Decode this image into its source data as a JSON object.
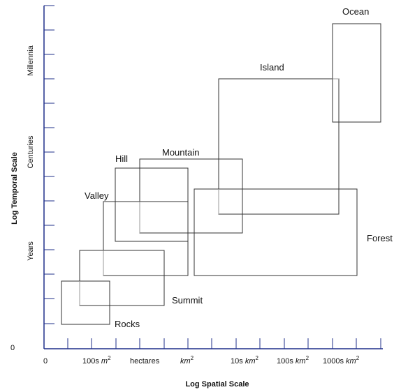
{
  "axes": {
    "x_title": "Log Spatial Scale",
    "y_title": "Log Temporal Scale",
    "x_ticks": {
      "zero": "0",
      "t1_text": "100s",
      "t1_unit": "m",
      "t1_sup": "2",
      "t2": "hectares",
      "t3_unit": "km",
      "t3_sup": "2",
      "t4_text": "10s",
      "t4_unit": "km",
      "t4_sup": "2",
      "t5_text": "100s",
      "t5_unit": "km",
      "t5_sup": "2",
      "t6_text": "1000s",
      "t6_unit": "km",
      "t6_sup": "2"
    },
    "y_ticks": {
      "zero": "0",
      "years": "Years",
      "centuries": "Centuries",
      "millennia": "Millennia"
    }
  },
  "labels": {
    "ocean": "Ocean",
    "island": "Island",
    "mountain": "Mountain",
    "hill": "Hill",
    "valley": "Valley",
    "forest": "Forest",
    "summit": "Summit",
    "rocks": "Rocks"
  },
  "colors": {
    "axis": "#1f2f8a",
    "box": "#333333",
    "overlap": "#999999"
  }
}
